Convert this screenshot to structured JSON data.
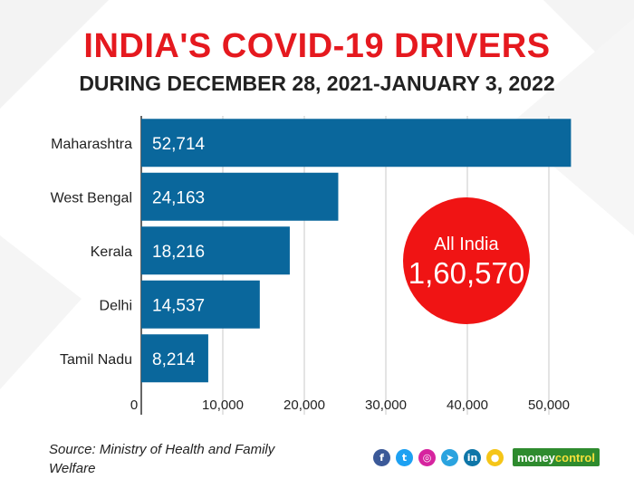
{
  "title": "INDIA'S COVID-19 DRIVERS",
  "subtitle": "DURING DECEMBER 28, 2021-JANUARY 3, 2022",
  "callout": {
    "label": "All India",
    "value": "1,60,570",
    "color": "#f01414"
  },
  "source": "Source: Ministry of Health and Family Welfare",
  "brand": {
    "part1": "money",
    "part2": "control"
  },
  "social_icons": [
    {
      "name": "facebook-icon",
      "glyph": "f",
      "color": "#3b5998"
    },
    {
      "name": "twitter-icon",
      "glyph": "t",
      "color": "#1da1f2"
    },
    {
      "name": "instagram-icon",
      "glyph": "◎",
      "color": "#d6249f"
    },
    {
      "name": "telegram-icon",
      "glyph": "➤",
      "color": "#2aa3df"
    },
    {
      "name": "linkedin-icon",
      "glyph": "in",
      "color": "#0e76a8"
    },
    {
      "name": "koo-icon",
      "glyph": "●",
      "color": "#f5c518"
    }
  ],
  "chart_data": {
    "type": "bar",
    "orientation": "horizontal",
    "categories": [
      "Maharashtra",
      "West Bengal",
      "Kerala",
      "Delhi",
      "Tamil Nadu"
    ],
    "values": [
      52714,
      24163,
      18216,
      14537,
      8214
    ],
    "value_labels": [
      "52,714",
      "24,163",
      "18,216",
      "14,537",
      "8,214"
    ],
    "xlim": [
      0,
      53000
    ],
    "xticks": [
      0,
      10000,
      20000,
      30000,
      40000,
      50000
    ],
    "xtick_labels": [
      "0",
      "10,000",
      "20,000",
      "30,000",
      "40,000",
      "50,000"
    ],
    "grid": "vertical",
    "bar_color": "#0a679c",
    "title": "INDIA'S COVID-19 DRIVERS",
    "xlabel": "",
    "ylabel": ""
  }
}
